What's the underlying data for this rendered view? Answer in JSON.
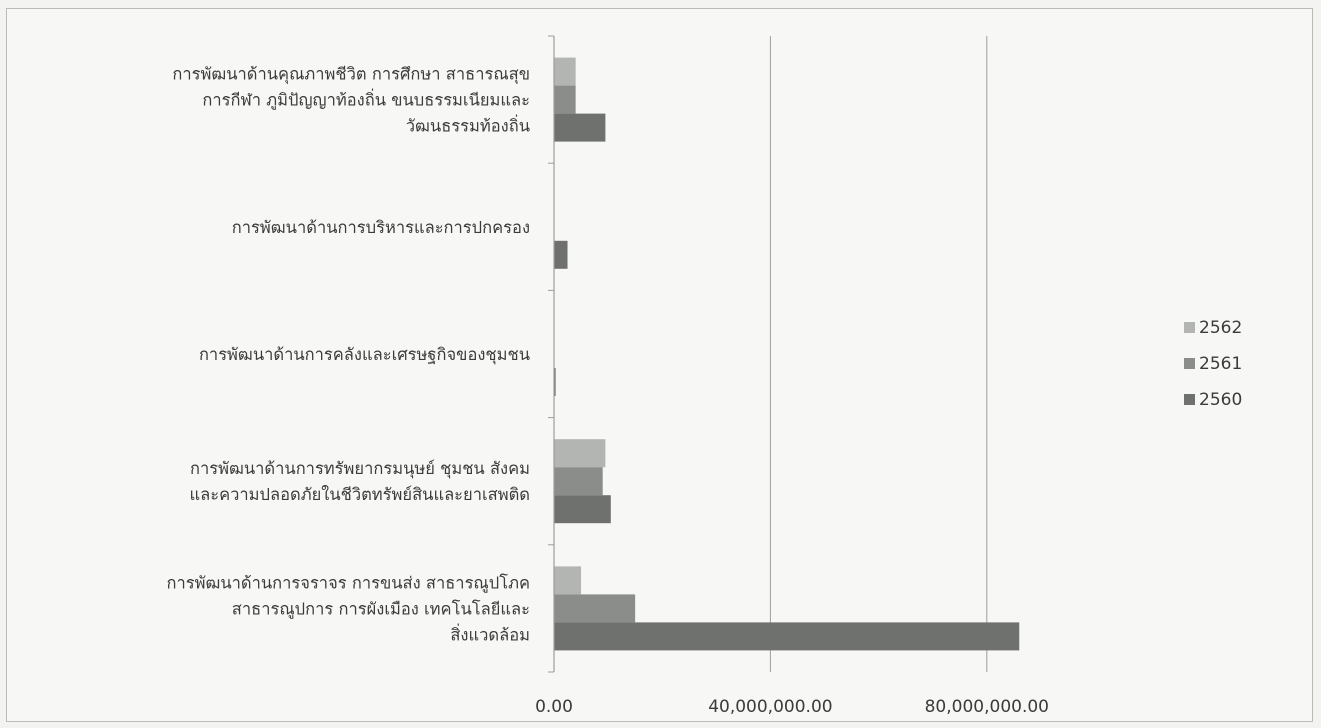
{
  "chart_data": {
    "type": "bar",
    "orientation": "horizontal",
    "title": "",
    "xlabel": "",
    "ylabel": "",
    "categories": [
      [
        "การพัฒนาด้านคุณภาพชีวิต การศึกษา สาธารณสุข",
        "การกีฬา ภูมิปัญญาท้องถิ่น ขนบธรรมเนียมและ",
        "วัฒนธรรมท้องถิ่น"
      ],
      [
        "การพัฒนาด้านการบริหารและการปกครอง"
      ],
      [
        "การพัฒนาด้านการคลังและเศรษฐกิจของชุมชน"
      ],
      [
        "การพัฒนาด้านการทรัพยากรมนุษย์ ชุมชน สังคม",
        "และความปลอดภัยในชีวิตทรัพย์สินและยาเสพติด"
      ],
      [
        "การพัฒนาด้านการจราจร การขนส่ง สาธารณูปโภค",
        "สาธารณูปการ การผังเมือง เทคโนโลยีและ",
        "สิ่งแวดล้อม"
      ]
    ],
    "series": [
      {
        "name": "2562",
        "color": "#b2b5b2",
        "values": [
          4000000,
          0,
          0,
          9500000,
          5000000
        ]
      },
      {
        "name": "2561",
        "color": "#8a8d8a",
        "values": [
          4000000,
          0,
          0,
          9000000,
          15000000
        ]
      },
      {
        "name": "2560",
        "color": "#6f716f",
        "values": [
          9500000,
          2500000,
          300000,
          10500000,
          86000000
        ]
      }
    ],
    "xlim": [
      0,
      100000000
    ],
    "xticks": [
      0,
      40000000,
      80000000
    ],
    "xtick_labels": [
      "0.00",
      "40,000,000.00",
      "80,000,000.00"
    ],
    "grid": "vertical",
    "legend": {
      "position": "right",
      "entries": [
        "2562",
        "2561",
        "2560"
      ]
    }
  }
}
